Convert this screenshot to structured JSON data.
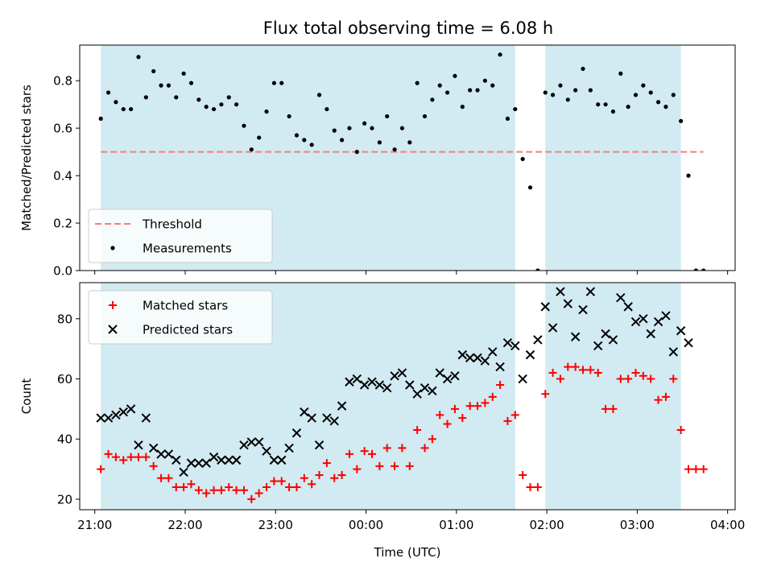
{
  "figure": {
    "title": "Flux total observing time = 6.08 h"
  },
  "colors": {
    "shade": "#add8e6",
    "threshold": "#f08080",
    "measure": "#000000",
    "matched": "#ff0000",
    "predicted": "#000000"
  },
  "chart_data": [
    {
      "type": "scatter",
      "title": "Flux total observing time = 6.08 h",
      "xlabel": "",
      "ylabel": "Matched/Predicted stars",
      "xlim": [
        "20:50",
        "04:05"
      ],
      "ylim": [
        0,
        0.95
      ],
      "yticks": [
        0.0,
        0.2,
        0.4,
        0.6,
        0.8
      ],
      "yticklabels": [
        "0.0",
        "0.2",
        "0.4",
        "0.6",
        "0.8"
      ],
      "shaded_intervals": [
        [
          "21:04",
          "01:39"
        ],
        [
          "01:59",
          "03:29"
        ]
      ],
      "threshold": {
        "label": "Threshold",
        "value": 0.5,
        "x": [
          "21:04",
          "03:44"
        ]
      },
      "legend": {
        "position": "lower-left",
        "entries": [
          "Threshold",
          "Measurements"
        ]
      },
      "series": [
        {
          "name": "Measurements",
          "x": [
            "21:04",
            "21:09",
            "21:14",
            "21:19",
            "21:24",
            "21:29",
            "21:34",
            "21:39",
            "21:44",
            "21:49",
            "21:54",
            "21:59",
            "22:04",
            "22:09",
            "22:14",
            "22:19",
            "22:24",
            "22:29",
            "22:34",
            "22:39",
            "22:44",
            "22:49",
            "22:54",
            "22:59",
            "23:04",
            "23:09",
            "23:14",
            "23:19",
            "23:24",
            "23:29",
            "23:34",
            "23:39",
            "23:44",
            "23:49",
            "23:54",
            "23:59",
            "00:04",
            "00:09",
            "00:14",
            "00:19",
            "00:24",
            "00:29",
            "00:34",
            "00:39",
            "00:44",
            "00:49",
            "00:54",
            "00:59",
            "01:04",
            "01:09",
            "01:14",
            "01:19",
            "01:24",
            "01:29",
            "01:34",
            "01:39",
            "01:44",
            "01:49",
            "01:54",
            "01:59",
            "02:04",
            "02:09",
            "02:14",
            "02:19",
            "02:24",
            "02:29",
            "02:34",
            "02:39",
            "02:44",
            "02:49",
            "02:54",
            "02:59",
            "03:04",
            "03:09",
            "03:14",
            "03:19",
            "03:24",
            "03:29",
            "03:34",
            "03:39",
            "03:44"
          ],
          "y": [
            0.64,
            0.75,
            0.71,
            0.68,
            0.68,
            0.9,
            0.73,
            0.84,
            0.78,
            0.78,
            0.73,
            0.83,
            0.79,
            0.72,
            0.69,
            0.68,
            0.7,
            0.73,
            0.7,
            0.61,
            0.51,
            0.56,
            0.67,
            0.79,
            0.79,
            0.65,
            0.57,
            0.55,
            0.53,
            0.74,
            0.68,
            0.59,
            0.55,
            0.6,
            0.5,
            0.62,
            0.6,
            0.54,
            0.65,
            0.51,
            0.6,
            0.54,
            0.79,
            0.65,
            0.72,
            0.78,
            0.75,
            0.82,
            0.69,
            0.76,
            0.76,
            0.8,
            0.78,
            0.91,
            0.64,
            0.68,
            0.47,
            0.35,
            0.0,
            0.75,
            0.74,
            0.78,
            0.72,
            0.76,
            0.85,
            0.76,
            0.7,
            0.7,
            0.67,
            0.83,
            0.69,
            0.74,
            0.78,
            0.75,
            0.71,
            0.69,
            0.74,
            0.63,
            0.4,
            0.0,
            0.0
          ]
        }
      ]
    },
    {
      "type": "scatter",
      "xlabel": "Time (UTC)",
      "ylabel": "Count",
      "xlim": [
        "20:50",
        "04:05"
      ],
      "ylim": [
        16.5,
        92
      ],
      "xticklabels": [
        "21:00",
        "22:00",
        "23:00",
        "00:00",
        "01:00",
        "02:00",
        "03:00",
        "04:00"
      ],
      "yticks": [
        20,
        40,
        60,
        80
      ],
      "yticklabels": [
        "20",
        "40",
        "60",
        "80"
      ],
      "shaded_intervals": [
        [
          "21:04",
          "01:39"
        ],
        [
          "01:59",
          "03:29"
        ]
      ],
      "legend": {
        "position": "upper-left",
        "entries": [
          "Matched stars",
          "Predicted stars"
        ]
      },
      "series": [
        {
          "name": "Matched stars",
          "x": [
            "21:04",
            "21:09",
            "21:14",
            "21:19",
            "21:24",
            "21:29",
            "21:34",
            "21:39",
            "21:44",
            "21:49",
            "21:54",
            "21:59",
            "22:04",
            "22:09",
            "22:14",
            "22:19",
            "22:24",
            "22:29",
            "22:34",
            "22:39",
            "22:44",
            "22:49",
            "22:54",
            "22:59",
            "23:04",
            "23:09",
            "23:14",
            "23:19",
            "23:24",
            "23:29",
            "23:34",
            "23:39",
            "23:44",
            "23:49",
            "23:54",
            "23:59",
            "00:04",
            "00:09",
            "00:14",
            "00:19",
            "00:24",
            "00:29",
            "00:34",
            "00:39",
            "00:44",
            "00:49",
            "00:54",
            "00:59",
            "01:04",
            "01:09",
            "01:14",
            "01:19",
            "01:24",
            "01:29",
            "01:34",
            "01:39",
            "01:44",
            "01:49",
            "01:54",
            "01:59",
            "02:04",
            "02:09",
            "02:14",
            "02:19",
            "02:24",
            "02:29",
            "02:34",
            "02:39",
            "02:44",
            "02:49",
            "02:54",
            "02:59",
            "03:04",
            "03:09",
            "03:14",
            "03:19",
            "03:24",
            "03:29",
            "03:34",
            "03:39",
            "03:44"
          ],
          "y": [
            30,
            35,
            34,
            33,
            34,
            34,
            34,
            31,
            27,
            27,
            24,
            24,
            25,
            23,
            22,
            23,
            23,
            24,
            23,
            23,
            20,
            22,
            24,
            26,
            26,
            24,
            24,
            27,
            25,
            28,
            32,
            27,
            28,
            35,
            30,
            36,
            35,
            31,
            37,
            31,
            37,
            31,
            43,
            37,
            40,
            48,
            45,
            50,
            47,
            51,
            51,
            52,
            54,
            58,
            46,
            48,
            28,
            24,
            24,
            55,
            62,
            60,
            64,
            64,
            63,
            63,
            62,
            50,
            50,
            60,
            60,
            62,
            61,
            60,
            53,
            54,
            60,
            43,
            30,
            30,
            30
          ]
        },
        {
          "name": "Predicted stars",
          "x": [
            "21:04",
            "21:09",
            "21:14",
            "21:19",
            "21:24",
            "21:29",
            "21:34",
            "21:39",
            "21:44",
            "21:49",
            "21:54",
            "21:59",
            "22:04",
            "22:09",
            "22:14",
            "22:19",
            "22:24",
            "22:29",
            "22:34",
            "22:39",
            "22:44",
            "22:49",
            "22:54",
            "22:59",
            "23:04",
            "23:09",
            "23:14",
            "23:19",
            "23:24",
            "23:29",
            "23:34",
            "23:39",
            "23:44",
            "23:49",
            "23:54",
            "23:59",
            "00:04",
            "00:09",
            "00:14",
            "00:19",
            "00:24",
            "00:29",
            "00:34",
            "00:39",
            "00:44",
            "00:49",
            "00:54",
            "00:59",
            "01:04",
            "01:09",
            "01:14",
            "01:19",
            "01:24",
            "01:29",
            "01:34",
            "01:39",
            "01:44",
            "01:49",
            "01:54",
            "01:59",
            "02:04",
            "02:09",
            "02:14",
            "02:19",
            "02:24",
            "02:29",
            "02:34",
            "02:39",
            "02:44",
            "02:49",
            "02:54",
            "02:59",
            "03:04",
            "03:09",
            "03:14",
            "03:19",
            "03:24",
            "03:29",
            "03:34"
          ],
          "y": [
            47,
            47,
            48,
            49,
            50,
            38,
            47,
            37,
            35,
            35,
            33,
            29,
            32,
            32,
            32,
            34,
            33,
            33,
            33,
            38,
            39,
            39,
            36,
            33,
            33,
            37,
            42,
            49,
            47,
            38,
            47,
            46,
            51,
            59,
            60,
            58,
            59,
            58,
            57,
            61,
            62,
            58,
            55,
            57,
            56,
            62,
            60,
            61,
            68,
            67,
            67,
            66,
            69,
            64,
            72,
            71,
            60,
            68,
            73,
            84,
            77,
            89,
            85,
            74,
            83,
            89,
            71,
            75,
            73,
            87,
            84,
            79,
            80,
            75,
            79,
            81,
            69,
            76,
            72
          ]
        }
      ]
    }
  ]
}
